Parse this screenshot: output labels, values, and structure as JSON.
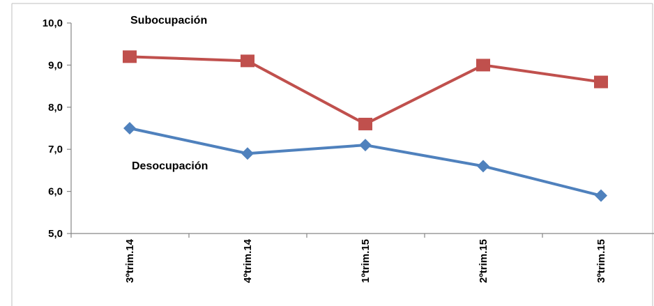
{
  "chart_data": {
    "type": "line",
    "categories": [
      "3ºtrim.14",
      "4ºtrim.14",
      "1ºtrim.15",
      "2ºtrim.15",
      "3ºtrim.15"
    ],
    "series": [
      {
        "name": "Subocupación",
        "values": [
          9.2,
          9.1,
          7.6,
          9.0,
          8.6
        ],
        "color": "#c0504d",
        "marker": "square"
      },
      {
        "name": "Desocupación",
        "values": [
          7.5,
          6.9,
          7.1,
          6.6,
          5.9
        ],
        "color": "#4f81bd",
        "marker": "diamond"
      }
    ],
    "yticks": [
      "5,0",
      "6,0",
      "7,0",
      "8,0",
      "9,0",
      "10,0"
    ],
    "ylim": [
      5,
      10
    ],
    "grid": false,
    "legend": "inline labels"
  }
}
